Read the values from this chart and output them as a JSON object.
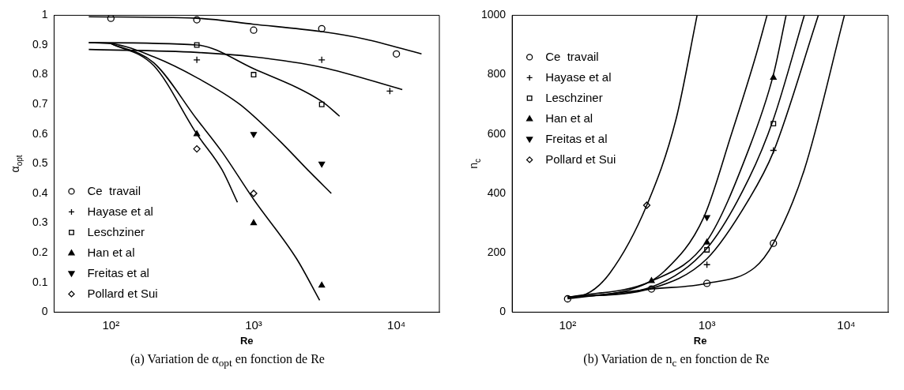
{
  "chart_data": [
    {
      "type": "scatter",
      "xlabel": "Re",
      "ylabel": "α$_{opt}$",
      "log": "x",
      "grid": false,
      "legend": "bottom left",
      "xlim": [
        40,
        20000
      ],
      "xticks": [
        {
          "value": 100,
          "label": "10²"
        },
        {
          "value": 1000,
          "label": "10³"
        },
        {
          "value": 10000,
          "label": "10⁴"
        }
      ],
      "ylim": [
        0,
        1
      ],
      "yticks": [
        0,
        0.1,
        0.2,
        0.3,
        0.4,
        0.5,
        0.6,
        0.7,
        0.8,
        0.9,
        1
      ],
      "annotations": [
        "(a) Variation de α$_{opt}$ en fonction de Re"
      ],
      "series": [
        {
          "name": "Ce  travail",
          "color": "#000000",
          "marker": "circle",
          "x": [
            100,
            400,
            1000,
            3000,
            10000
          ],
          "values": [
            0.99,
            0.985,
            0.95,
            0.955,
            0.87
          ]
        },
        {
          "name": "Hayase et al",
          "color": "#000000",
          "marker": "cross",
          "x": [
            400,
            3000,
            9000
          ],
          "values": [
            0.85,
            0.85,
            0.745
          ]
        },
        {
          "name": "Leschziner",
          "color": "#000000",
          "marker": "square",
          "x": [
            400,
            1000,
            3000
          ],
          "values": [
            0.9,
            0.8,
            0.7
          ]
        },
        {
          "name": "Han et al",
          "color": "#000000",
          "marker": "triangle",
          "x": [
            400,
            1000,
            3000
          ],
          "values": [
            0.6,
            0.3,
            0.09
          ]
        },
        {
          "name": "Freitas et al",
          "color": "#000000",
          "marker": "triangle-down",
          "x": [
            1000,
            3000
          ],
          "values": [
            0.6,
            0.5
          ]
        },
        {
          "name": "Pollard et Sui",
          "color": "#000000",
          "marker": "diamond",
          "x": [
            400,
            1000
          ],
          "values": [
            0.55,
            0.4
          ]
        },
        {
          "type": "line",
          "color": "#000000",
          "x": [
            70,
            400,
            1000,
            3000,
            6000,
            15000
          ],
          "values": [
            0.995,
            0.99,
            0.97,
            0.945,
            0.92,
            0.87
          ]
        },
        {
          "type": "line",
          "color": "#000000",
          "x": [
            70,
            400,
            1000,
            3000,
            11000
          ],
          "values": [
            0.885,
            0.875,
            0.86,
            0.825,
            0.75
          ]
        },
        {
          "type": "line",
          "color": "#000000",
          "x": [
            70,
            400,
            1000,
            3000,
            4000
          ],
          "values": [
            0.908,
            0.9,
            0.82,
            0.71,
            0.66
          ]
        },
        {
          "type": "line",
          "color": "#000000",
          "x": [
            70,
            100,
            200,
            400,
            800,
            1500,
            2500,
            3500
          ],
          "values": [
            0.908,
            0.905,
            0.86,
            0.79,
            0.7,
            0.58,
            0.47,
            0.4
          ]
        },
        {
          "type": "line",
          "color": "#000000",
          "x": [
            100,
            200,
            400,
            600,
            770
          ],
          "values": [
            0.905,
            0.83,
            0.6,
            0.48,
            0.37
          ]
        },
        {
          "type": "line",
          "color": "#000000",
          "x": [
            100,
            200,
            400,
            600,
            1000,
            2000,
            2900
          ],
          "values": [
            0.905,
            0.84,
            0.65,
            0.54,
            0.38,
            0.18,
            0.04
          ]
        }
      ]
    },
    {
      "type": "scatter",
      "xlabel": "Re",
      "ylabel": "n$_{c}$",
      "log": "x",
      "grid": false,
      "legend": "top left",
      "xlim": [
        40,
        20000
      ],
      "xticks": [
        {
          "value": 100,
          "label": "10²"
        },
        {
          "value": 1000,
          "label": "10³"
        },
        {
          "value": 10000,
          "label": "10⁴"
        }
      ],
      "ylim": [
        0,
        1000
      ],
      "yticks": [
        0,
        200,
        400,
        600,
        800,
        1000
      ],
      "annotations": [
        "(b) Variation de n$_{c}$ en fonction de Re"
      ],
      "series": [
        {
          "name": "Ce  travail",
          "color": "#000000",
          "marker": "circle",
          "x": [
            100,
            400,
            1000,
            3000
          ],
          "values": [
            45,
            78,
            97,
            232
          ]
        },
        {
          "name": "Hayase et al",
          "color": "#000000",
          "marker": "cross",
          "x": [
            1000,
            3000
          ],
          "values": [
            160,
            545
          ]
        },
        {
          "name": "Leschziner",
          "color": "#000000",
          "marker": "square",
          "x": [
            1000,
            3000
          ],
          "values": [
            210,
            635
          ]
        },
        {
          "name": "Han et al",
          "color": "#000000",
          "marker": "triangle",
          "x": [
            400,
            1000,
            3000
          ],
          "values": [
            105,
            235,
            790
          ]
        },
        {
          "name": "Freitas et al",
          "color": "#000000",
          "marker": "triangle-down",
          "x": [
            1000
          ],
          "values": [
            320
          ]
        },
        {
          "name": "Pollard et Sui",
          "color": "#000000",
          "marker": "diamond",
          "x": [
            370
          ],
          "values": [
            360
          ]
        },
        {
          "type": "line",
          "color": "#000000",
          "x": [
            100,
            135,
            200,
            370,
            600,
            850
          ],
          "values": [
            50,
            60,
            130,
            360,
            650,
            1000
          ]
        },
        {
          "type": "line",
          "color": "#000000",
          "x": [
            100,
            300,
            500,
            950,
            1500,
            2200,
            2700
          ],
          "values": [
            50,
            80,
            140,
            320,
            600,
            850,
            1000
          ]
        },
        {
          "type": "line",
          "color": "#000000",
          "x": [
            100,
            400,
            1000,
            2000,
            3000,
            3700
          ],
          "values": [
            50,
            105,
            240,
            550,
            800,
            1000
          ]
        },
        {
          "type": "line",
          "color": "#000000",
          "x": [
            100,
            400,
            1000,
            2000,
            3000,
            5000
          ],
          "values": [
            50,
            85,
            215,
            450,
            650,
            1000
          ]
        },
        {
          "type": "line",
          "color": "#000000",
          "x": [
            100,
            400,
            1000,
            2000,
            3000,
            6300
          ],
          "values": [
            50,
            80,
            180,
            380,
            540,
            1000
          ]
        },
        {
          "type": "line",
          "color": "#000000",
          "x": [
            100,
            400,
            1000,
            2200,
            3000,
            5000,
            9700
          ],
          "values": [
            45,
            78,
            97,
            150,
            232,
            480,
            1000
          ]
        }
      ]
    }
  ]
}
